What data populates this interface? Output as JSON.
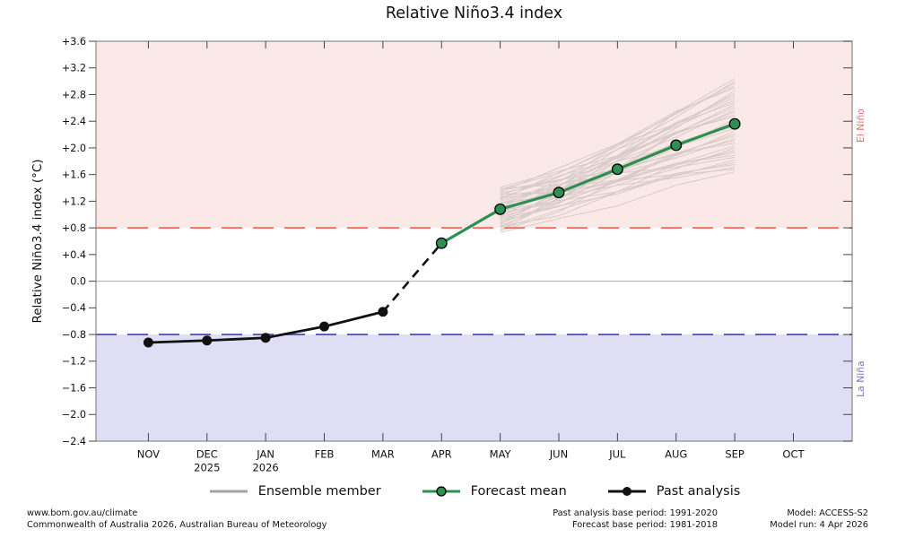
{
  "title": "Relative Niño3.4 index",
  "y_axis": {
    "label": "Relative Niño3.4 index (°C)",
    "ticks": [
      {
        "label": "+3.6",
        "value": 3.6
      },
      {
        "label": "+3.2",
        "value": 3.2
      },
      {
        "label": "+2.8",
        "value": 2.8
      },
      {
        "label": "+2.4",
        "value": 2.4
      },
      {
        "label": "+2.0",
        "value": 2.0
      },
      {
        "label": "+1.6",
        "value": 1.6
      },
      {
        "label": "+1.2",
        "value": 1.2
      },
      {
        "label": "+0.8",
        "value": 0.8
      },
      {
        "label": "+0.4",
        "value": 0.4
      },
      {
        "label": "0.0",
        "value": 0.0
      },
      {
        "label": "−0.4",
        "value": -0.4
      },
      {
        "label": "−0.8",
        "value": -0.8
      },
      {
        "label": "−1.2",
        "value": -1.2
      },
      {
        "label": "−1.6",
        "value": -1.6
      },
      {
        "label": "−2.0",
        "value": -2.0
      },
      {
        "label": "−2.4",
        "value": -2.4
      }
    ]
  },
  "x_axis": {
    "months": [
      "NOV",
      "DEC",
      "JAN",
      "FEB",
      "MAR",
      "APR",
      "MAY",
      "JUN",
      "JUL",
      "AUG",
      "SEP",
      "OCT"
    ],
    "years": {
      "1": "2025",
      "2": "2026"
    }
  },
  "regions": {
    "el_nino_label": "El Niño",
    "la_nina_label": "La Niña"
  },
  "legend": {
    "ensemble_label": "Ensemble member",
    "forecast_label": "Forecast mean",
    "past_label": "Past analysis"
  },
  "footer": {
    "site": "www.bom.gov.au/climate",
    "copyright": "Commonwealth of Australia 2026, Australian Bureau of Meteorology",
    "past_base": "Past analysis base period: 1991-2020",
    "forecast_base": "Forecast base period: 1981-2018",
    "model": "Model: ACCESS-S2",
    "model_run": "Model run: 4 Apr 2026"
  },
  "colors": {
    "el_nino_band": "#fbe9e7",
    "la_nina_band": "#dfdef5",
    "el_nino_line": "#f8695c",
    "la_nina_line": "#5a52bf",
    "zero_line": "#ababab",
    "forecast": "#2d8f51",
    "past": "#111111",
    "ensemble": "#909090",
    "frame": "#8a8a8a",
    "el_nino_text": "#e5736b",
    "la_nina_text": "#7b78c9",
    "tick": "#444444"
  },
  "chart_data": {
    "type": "line",
    "title": "Relative Niño3.4 index",
    "ylabel": "Relative Niño3.4 index (°C)",
    "ylim": [
      -2.4,
      3.6
    ],
    "categories": [
      "NOV",
      "DEC",
      "JAN",
      "FEB",
      "MAR",
      "APR",
      "MAY",
      "JUN",
      "JUL",
      "AUG",
      "SEP",
      "OCT"
    ],
    "el_nino_threshold": 0.8,
    "la_nina_threshold": -0.8,
    "past_analysis": {
      "start_month_index": 0,
      "values": [
        -0.92,
        -0.89,
        -0.85,
        -0.68,
        -0.46
      ]
    },
    "transition_dashed": {
      "from": {
        "month_index": 4,
        "value": -0.46
      },
      "to": {
        "month_index": 5,
        "value": 0.57
      }
    },
    "forecast_mean": {
      "start_month_index": 5,
      "values": [
        0.57,
        1.08,
        1.33,
        1.68,
        2.04,
        2.36
      ]
    },
    "ensemble_members": {
      "start_month_index": 6,
      "values": [
        [
          0.73,
          0.94,
          1.13,
          1.44,
          1.64
        ],
        [
          0.75,
          1.04,
          1.52,
          1.88,
          2.25
        ],
        [
          0.76,
          1.23,
          1.81,
          2.3,
          2.86
        ],
        [
          0.78,
          1.07,
          1.34,
          1.76,
          2.03
        ],
        [
          0.8,
          1.25,
          1.67,
          2.22,
          2.65
        ],
        [
          0.82,
          0.98,
          1.34,
          1.58,
          1.82
        ],
        [
          0.83,
          1.17,
          1.63,
          2.0,
          2.43
        ],
        [
          0.85,
          1.37,
          1.88,
          2.53,
          3.04
        ],
        [
          0.87,
          1.19,
          1.49,
          1.9,
          2.21
        ],
        [
          0.89,
          1.29,
          1.87,
          2.35,
          2.82
        ],
        [
          0.9,
          1.12,
          1.45,
          1.69,
          2.0
        ],
        [
          0.92,
          1.32,
          1.7,
          2.23,
          2.61
        ],
        [
          0.94,
          1.13,
          1.31,
          1.6,
          1.78
        ],
        [
          0.96,
          1.23,
          1.69,
          2.04,
          2.39
        ],
        [
          0.97,
          1.42,
          1.98,
          2.46,
          3.0
        ],
        [
          0.99,
          1.26,
          1.52,
          1.92,
          2.18
        ],
        [
          1.01,
          1.44,
          1.85,
          2.37,
          2.79
        ],
        [
          1.03,
          1.18,
          1.51,
          1.74,
          1.96
        ],
        [
          1.04,
          1.37,
          1.8,
          2.16,
          2.57
        ],
        [
          1.06,
          1.21,
          1.34,
          1.62,
          1.75
        ],
        [
          1.08,
          1.38,
          1.67,
          2.07,
          2.36
        ],
        [
          1.1,
          1.48,
          2.05,
          2.51,
          2.97
        ],
        [
          1.11,
          1.31,
          1.62,
          1.85,
          2.14
        ],
        [
          1.13,
          1.51,
          1.88,
          2.38,
          2.75
        ],
        [
          1.15,
          1.33,
          1.49,
          1.76,
          1.93
        ],
        [
          1.17,
          1.43,
          1.87,
          2.21,
          2.54
        ],
        [
          1.18,
          1.26,
          1.44,
          1.55,
          1.71
        ],
        [
          1.2,
          1.45,
          1.7,
          2.08,
          2.32
        ],
        [
          1.22,
          1.63,
          2.02,
          2.53,
          2.93
        ],
        [
          1.24,
          1.37,
          1.69,
          1.9,
          2.11
        ],
        [
          1.25,
          1.56,
          1.98,
          2.32,
          2.72
        ],
        [
          1.27,
          1.4,
          1.52,
          1.77,
          1.89
        ],
        [
          1.29,
          1.58,
          1.84,
          2.23,
          2.5
        ],
        [
          1.31,
          1.32,
          1.51,
          1.6,
          1.68
        ],
        [
          1.32,
          1.51,
          1.8,
          2.02,
          2.29
        ],
        [
          1.34,
          1.7,
          2.06,
          2.55,
          2.9
        ],
        [
          1.36,
          1.52,
          1.66,
          1.92,
          2.07
        ],
        [
          1.38,
          1.62,
          2.05,
          2.36,
          2.68
        ],
        [
          1.39,
          1.45,
          1.62,
          1.71,
          1.86
        ],
        [
          1.41,
          1.65,
          1.88,
          2.24,
          2.47
        ]
      ]
    }
  }
}
